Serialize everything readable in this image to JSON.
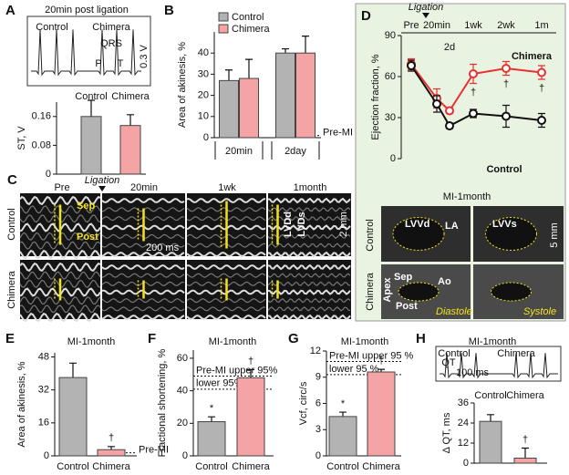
{
  "chart_data": [
    {
      "panel": "A",
      "type": "bar",
      "title": "20min post ligation",
      "ecg_labels": {
        "control": "Control",
        "chimera": "Chimera",
        "qrs": "QRS",
        "p": "P",
        "t": "T",
        "scale": "0.3 V"
      },
      "ylabel": "ST, V",
      "categories": [
        "Control",
        "Chimera"
      ],
      "values": [
        0.16,
        0.135
      ],
      "errors": [
        0.045,
        0.03
      ],
      "colors": [
        "#b3b3b3",
        "#f4a4a4"
      ],
      "ylim": [
        0,
        0.2
      ],
      "yticks": [
        0,
        0.08,
        0.16
      ]
    },
    {
      "panel": "B",
      "type": "grouped_bar",
      "ylabel": "Area of akinesis, %",
      "categories": [
        "20min",
        "2day"
      ],
      "series": [
        {
          "name": "Control",
          "color": "#b3b3b3",
          "values": [
            27,
            40
          ],
          "errors": [
            5,
            2
          ]
        },
        {
          "name": "Chimera",
          "color": "#f4a4a4",
          "values": [
            28,
            40
          ],
          "errors": [
            9,
            8
          ]
        }
      ],
      "ylim": [
        0,
        50
      ],
      "yticks": [
        0,
        10,
        20,
        30,
        40
      ],
      "reference_lines": [
        {
          "label": "Pre-MI",
          "value": 1
        }
      ]
    },
    {
      "panel": "D",
      "type": "line",
      "ylabel": "Ejection fraction, %",
      "annotation": "Ligation",
      "categories": [
        "Pre",
        "20min",
        "2d",
        "1wk",
        "2wk",
        "1m"
      ],
      "series": [
        {
          "name": "Chimera",
          "color": "#e8312f",
          "values": [
            69,
            44,
            35,
            62,
            66,
            63
          ],
          "errors": [
            4,
            7,
            2,
            7,
            5,
            5
          ],
          "markers": [
            null,
            null,
            null,
            "†",
            "†",
            "†"
          ]
        },
        {
          "name": "Control",
          "color": "#111111",
          "values": [
            68,
            40,
            24,
            33,
            31,
            28
          ],
          "errors": [
            4,
            6,
            2,
            3,
            8,
            5
          ]
        }
      ],
      "ylim": [
        0,
        90
      ],
      "yticks": [
        0,
        30,
        60,
        90
      ]
    },
    {
      "panel": "E",
      "type": "bar",
      "title": "MI-1month",
      "ylabel": "Area of akinesis, %",
      "categories": [
        "Control",
        "Chimera"
      ],
      "values": [
        38,
        3
      ],
      "errors": [
        7,
        1.5
      ],
      "markers": [
        null,
        "†"
      ],
      "colors": [
        "#b3b3b3",
        "#f4a4a4"
      ],
      "ylim": [
        0,
        50
      ],
      "yticks": [
        0,
        16,
        32,
        48
      ],
      "reference_lines": [
        {
          "label": "Pre-MI",
          "value": 1.5
        }
      ]
    },
    {
      "panel": "F",
      "type": "bar",
      "title": "MI-1month",
      "ylabel": "Fractional shortening, %",
      "categories": [
        "Control",
        "Chimera"
      ],
      "values": [
        21,
        48
      ],
      "errors": [
        3,
        5
      ],
      "markers": [
        "*",
        "†"
      ],
      "colors": [
        "#b3b3b3",
        "#f4a4a4"
      ],
      "ylim": [
        0,
        65
      ],
      "yticks": [
        0,
        20,
        40,
        60
      ],
      "reference_lines": [
        {
          "label": "Pre-MI upper 95%",
          "value": 49
        },
        {
          "label": "lower 95%",
          "value": 41
        }
      ]
    },
    {
      "panel": "G",
      "type": "bar",
      "title": "MI-1month",
      "ylabel": "Vcf, circ/s",
      "categories": [
        "Control",
        "Chimera"
      ],
      "values": [
        4.5,
        9.6
      ],
      "errors": [
        0.5,
        0.3
      ],
      "markers": [
        "*",
        "†"
      ],
      "colors": [
        "#b3b3b3",
        "#f4a4a4"
      ],
      "ylim": [
        0,
        12
      ],
      "yticks": [
        0,
        3,
        6,
        9,
        12
      ],
      "reference_lines": [
        {
          "label": "Pre-MI upper 95 %",
          "value": 10.8
        },
        {
          "label": "lower 95 %",
          "value": 9.3
        }
      ]
    },
    {
      "panel": "H",
      "type": "bar",
      "title": "MI-1month",
      "ecg_labels": {
        "control": "Control",
        "chimera": "Chimera",
        "qt": "QT",
        "scale": "100 ms"
      },
      "ylabel": "Δ QT, ms",
      "categories": [
        "Control",
        "Chimera"
      ],
      "values": [
        25,
        3
      ],
      "errors": [
        4,
        6
      ],
      "markers": [
        null,
        "†"
      ],
      "colors": [
        "#b3b3b3",
        "#f4a4a4"
      ],
      "ylim": [
        0,
        36
      ],
      "yticks": [
        0,
        12,
        24,
        36
      ]
    }
  ],
  "panel_C": {
    "label": "C",
    "columns": [
      "Pre",
      "20min",
      "1wk",
      "1month"
    ],
    "ligation": "Ligation",
    "rows": [
      "Control",
      "Chimera"
    ],
    "sep": "Sep",
    "post": "Post",
    "time_scale": "200 ms",
    "lvdd": "LVDd",
    "lvds": "LVDs",
    "length_scale": "2 mm"
  },
  "panel_D_images": {
    "title": "MI-1month",
    "rows": [
      "Control",
      "Chimera"
    ],
    "lvvd": "LVVd",
    "la": "LA",
    "lvvs": "LVVs",
    "length_scale": "5 mm",
    "sep": "Sep",
    "ao": "Ao",
    "apex": "Apex",
    "post": "Post",
    "diastole": "Diastole",
    "systole": "Systole"
  }
}
